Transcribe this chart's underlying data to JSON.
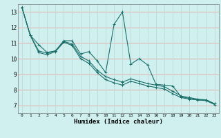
{
  "title": "",
  "xlabel": "Humidex (Indice chaleur)",
  "bg_color": "#d0f0f0",
  "grid_color_h": "#e8a0a0",
  "grid_color_v": "#c0d8d8",
  "line_color": "#1a6e6a",
  "xlim": [
    -0.5,
    23.5
  ],
  "ylim": [
    6.5,
    13.5
  ],
  "xticks": [
    0,
    1,
    2,
    3,
    4,
    5,
    6,
    7,
    8,
    9,
    10,
    11,
    12,
    13,
    14,
    15,
    16,
    17,
    18,
    19,
    20,
    21,
    22,
    23
  ],
  "yticks": [
    7,
    8,
    9,
    10,
    11,
    12,
    13
  ],
  "series": [
    [
      13.3,
      11.5,
      10.9,
      10.4,
      10.5,
      11.15,
      11.15,
      10.3,
      10.45,
      9.85,
      9.1,
      12.2,
      13.0,
      9.65,
      10.0,
      9.6,
      8.35,
      8.3,
      8.25,
      7.55,
      7.45,
      7.35,
      7.35,
      7.1
    ],
    [
      13.3,
      11.5,
      10.5,
      10.35,
      10.5,
      11.1,
      10.95,
      10.15,
      9.85,
      9.25,
      8.85,
      8.65,
      8.5,
      null,
      null,
      null,
      null,
      null,
      null,
      null,
      null,
      null,
      null,
      null
    ],
    [
      null,
      null,
      null,
      null,
      null,
      null,
      null,
      null,
      null,
      null,
      null,
      null,
      8.5,
      8.7,
      8.55,
      8.4,
      8.3,
      8.2,
      7.9,
      7.6,
      7.5,
      7.4,
      7.35,
      7.1
    ],
    [
      13.3,
      11.5,
      10.4,
      10.25,
      10.45,
      11.05,
      10.85,
      10.0,
      9.7,
      9.1,
      8.65,
      8.45,
      8.3,
      null,
      null,
      null,
      null,
      null,
      null,
      null,
      null,
      null,
      null,
      null
    ],
    [
      null,
      null,
      null,
      null,
      null,
      null,
      null,
      null,
      null,
      null,
      null,
      null,
      8.3,
      8.55,
      8.4,
      8.25,
      8.15,
      8.05,
      7.75,
      7.5,
      7.4,
      7.35,
      7.3,
      7.05
    ]
  ]
}
